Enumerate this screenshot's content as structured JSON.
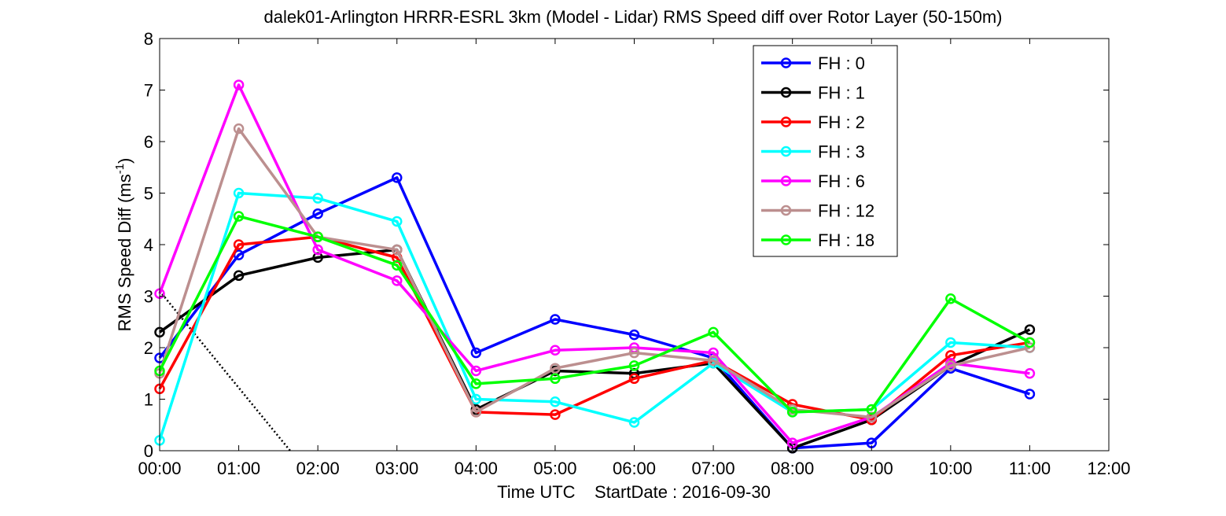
{
  "chart_data": {
    "type": "line",
    "title": "dalek01-Arlington HRRR-ESRL 3km (Model - Lidar) RMS Speed diff over Rotor Layer (50-150m)",
    "xlabel": "Time UTC    StartDate : 2016-09-30",
    "ylabel_main": "RMS Speed Diff (ms",
    "ylabel_sup": "-1",
    "ylabel_close": ")",
    "x_tick_labels": [
      "00:00",
      "01:00",
      "02:00",
      "03:00",
      "04:00",
      "05:00",
      "06:00",
      "07:00",
      "08:00",
      "09:00",
      "10:00",
      "11:00",
      "12:00"
    ],
    "y_tick_labels": [
      "0",
      "1",
      "2",
      "3",
      "4",
      "5",
      "6",
      "7",
      "8"
    ],
    "xlim": [
      0,
      12
    ],
    "ylim": [
      0,
      8
    ],
    "grid": false,
    "legend_position": "top-right",
    "x": [
      0,
      1,
      2,
      3,
      4,
      5,
      6,
      7,
      8,
      9,
      10,
      11
    ],
    "series": [
      {
        "name": "FH : 0",
        "color": "#0000ff",
        "values": [
          1.8,
          3.8,
          4.6,
          5.3,
          1.9,
          2.55,
          2.25,
          1.8,
          0.05,
          0.15,
          1.6,
          1.1
        ]
      },
      {
        "name": "FH : 1",
        "color": "#000000",
        "values": [
          2.3,
          3.4,
          3.75,
          3.9,
          0.8,
          1.55,
          1.5,
          1.7,
          0.05,
          0.6,
          1.65,
          2.35
        ]
      },
      {
        "name": "FH : 2",
        "color": "#ff0000",
        "values": [
          1.2,
          4.0,
          4.15,
          3.75,
          0.75,
          0.7,
          1.4,
          1.75,
          0.9,
          0.6,
          1.85,
          2.1
        ]
      },
      {
        "name": "FH : 3",
        "color": "#00ffff",
        "values": [
          0.2,
          5.0,
          4.9,
          4.45,
          1.0,
          0.95,
          0.55,
          1.7,
          0.75,
          0.8,
          2.1,
          2.0
        ]
      },
      {
        "name": "FH : 6",
        "color": "#ff00ff",
        "values": [
          3.05,
          7.1,
          3.9,
          3.3,
          1.55,
          1.95,
          2.0,
          1.9,
          0.15,
          0.65,
          1.7,
          1.5
        ]
      },
      {
        "name": "FH : 12",
        "color": "#bc8f8f",
        "values": [
          1.5,
          6.25,
          4.15,
          3.9,
          0.75,
          1.6,
          1.9,
          1.75,
          0.8,
          0.65,
          1.65,
          2.0
        ]
      },
      {
        "name": "FH : 18",
        "color": "#00ff00",
        "values": [
          1.55,
          4.55,
          4.15,
          3.6,
          1.3,
          1.4,
          1.65,
          2.3,
          0.75,
          0.8,
          2.95,
          2.1
        ]
      }
    ],
    "reference_line": {
      "style": "dotted",
      "color": "#000000",
      "x": [
        0,
        1.65
      ],
      "values": [
        3.1,
        0
      ]
    }
  }
}
